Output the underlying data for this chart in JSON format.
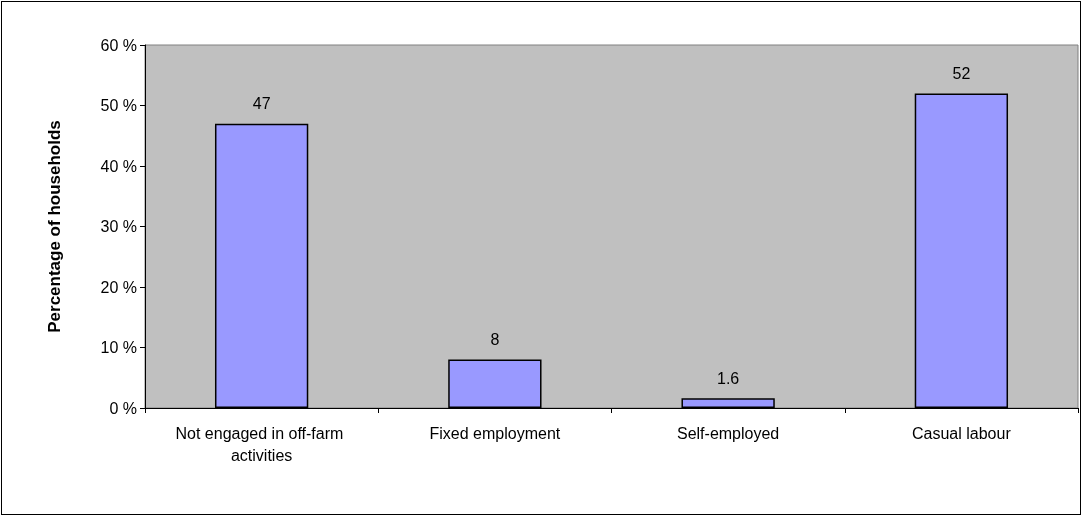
{
  "chart_data": {
    "type": "bar",
    "ylabel": "Percentage of households",
    "categories": [
      "Not engaged in off-farm activities",
      "Fixed employment",
      "Self-employed",
      "Casual labour"
    ],
    "values": [
      47,
      8,
      1.6,
      52
    ],
    "color": "#9999ff",
    "data_labels": true,
    "grid": false,
    "ylim": [
      0,
      60
    ],
    "yticks": [
      {
        "value": 0,
        "label": "0 %"
      },
      {
        "value": 10,
        "label": "10 %"
      },
      {
        "value": 20,
        "label": "20 %"
      },
      {
        "value": 30,
        "label": "30 %"
      },
      {
        "value": 40,
        "label": "40 %"
      },
      {
        "value": 50,
        "label": "50 %"
      },
      {
        "value": 60,
        "label": "60 %"
      }
    ]
  }
}
